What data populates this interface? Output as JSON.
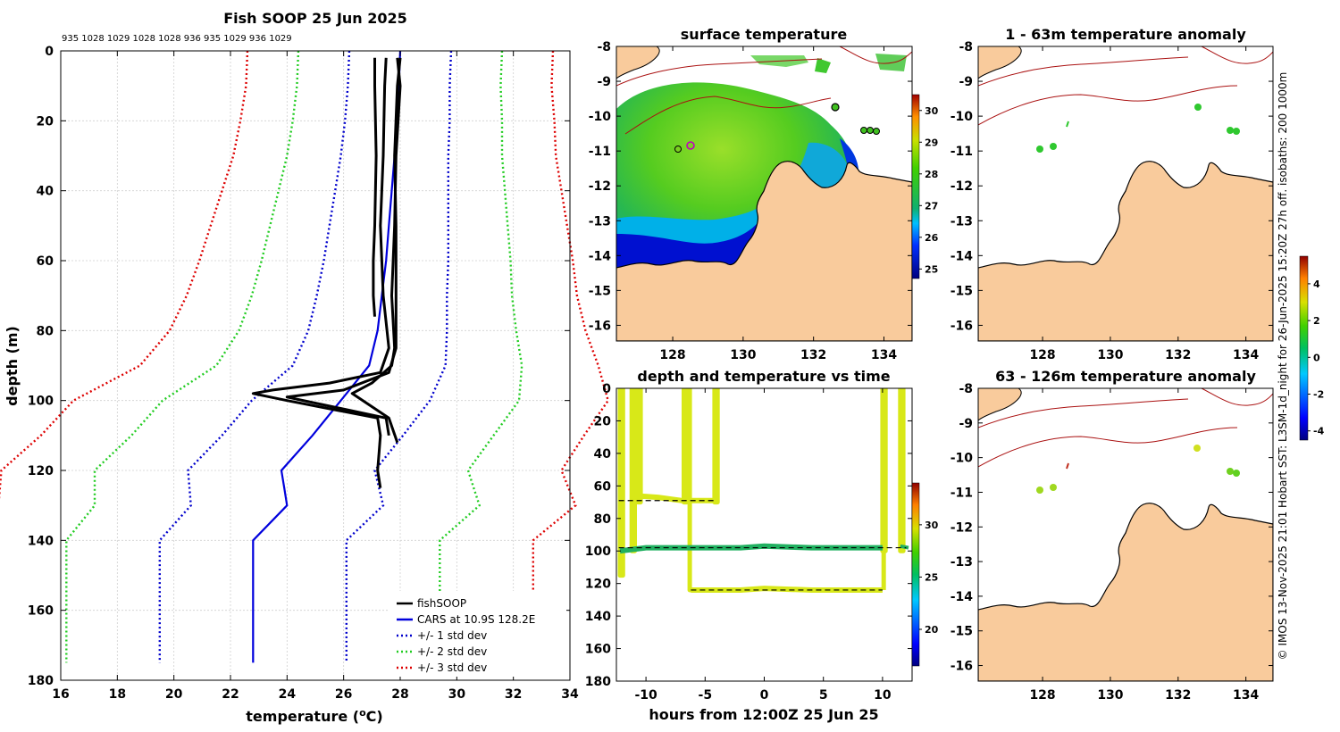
{
  "chart_data": [
    {
      "type": "line",
      "title": "Fish SOOP 25 Jun 2025",
      "xlabel": "temperature (",
      "xlabel_sup": "o",
      "xlabel_tail": "C)",
      "ylabel": "depth (m)",
      "xlim": [
        16,
        34
      ],
      "ylim": [
        180,
        0
      ],
      "xticks": [
        16,
        18,
        20,
        22,
        24,
        26,
        28,
        30,
        32,
        34
      ],
      "yticks": [
        0,
        20,
        40,
        60,
        80,
        100,
        120,
        140,
        160,
        180
      ],
      "top_labels": "935 1028 1029 1028 1028 936 935 1029 936 1029",
      "legend": [
        "fishSOOP",
        "CARS at 10.9S 128.2E",
        "+/- 1 std dev",
        "+/- 2 std dev",
        "+/- 3 std dev"
      ],
      "cars_depth": [
        0,
        10,
        20,
        30,
        40,
        50,
        60,
        70,
        80,
        90,
        100,
        110,
        120,
        125,
        130,
        140,
        175
      ],
      "cars_mean": [
        28.0,
        27.95,
        27.9,
        27.8,
        27.7,
        27.6,
        27.5,
        27.35,
        27.2,
        26.9,
        25.9,
        24.9,
        23.8,
        23.9,
        24.0,
        22.8,
        22.8
      ],
      "std_dev": [
        1.8,
        1.8,
        1.85,
        1.9,
        2.0,
        2.1,
        2.2,
        2.3,
        2.45,
        2.7,
        3.15,
        3.2,
        3.3,
        3.35,
        3.4,
        3.3,
        3.3
      ],
      "fishsoop_casts": [
        {
          "depth": [
            2,
            10,
            30,
            50,
            60,
            70,
            76
          ],
          "temp": [
            27.1,
            27.1,
            27.15,
            27.1,
            27.05,
            27.05,
            27.1
          ]
        },
        {
          "depth": [
            2,
            10,
            30,
            50,
            70,
            85,
            92,
            95,
            97,
            98,
            100,
            105,
            110,
            115,
            120,
            125
          ],
          "temp": [
            27.5,
            27.45,
            27.4,
            27.3,
            27.4,
            27.6,
            27.3,
            25.5,
            23.5,
            22.8,
            24.0,
            27.2,
            27.3,
            27.25,
            27.2,
            27.3
          ]
        },
        {
          "depth": [
            2,
            10,
            30,
            50,
            70,
            85,
            92,
            97,
            99,
            105,
            110
          ],
          "temp": [
            28.0,
            27.9,
            27.8,
            27.85,
            27.85,
            27.85,
            27.6,
            26.0,
            24.0,
            27.5,
            27.6
          ]
        },
        {
          "depth": [
            2,
            10,
            30,
            50,
            70,
            85,
            90,
            95,
            98,
            105,
            112
          ],
          "temp": [
            27.9,
            28.0,
            27.85,
            27.8,
            27.7,
            27.8,
            27.7,
            27.0,
            26.3,
            27.6,
            27.9
          ]
        }
      ]
    },
    {
      "type": "heatmap",
      "title": "surface temperature",
      "xticks": [
        128,
        130,
        132,
        134
      ],
      "yticks": [
        -8,
        -9,
        -10,
        -11,
        -12,
        -13,
        -14,
        -15,
        -16
      ],
      "colorbar_ticks": [
        25,
        26,
        27,
        28,
        29,
        30
      ],
      "clim": [
        24.7,
        30.5
      ]
    },
    {
      "type": "heatmap",
      "title": "1 - 63m temperature anomaly",
      "xticks": [
        128,
        130,
        132,
        134
      ],
      "yticks": [
        -8,
        -9,
        -10,
        -11,
        -12,
        -13,
        -14,
        -15,
        -16
      ]
    },
    {
      "type": "scatter",
      "title": "depth and temperature vs time",
      "xlabel": "hours from 12:00Z 25 Jun 25",
      "xlim": [
        -12.5,
        12.5
      ],
      "ylim": [
        180,
        0
      ],
      "xticks": [
        -10,
        -5,
        0,
        5,
        10
      ],
      "yticks": [
        0,
        20,
        40,
        60,
        80,
        100,
        120,
        140,
        160,
        180
      ],
      "colorbar_ticks": [
        20,
        25,
        30
      ],
      "clim": [
        16.5,
        34
      ],
      "dashed_depths": [
        [
          -12.3,
          -4,
          69
        ],
        [
          -12.3,
          12,
          98
        ],
        [
          -6.2,
          10,
          124
        ]
      ]
    },
    {
      "type": "heatmap",
      "title": "63 - 126m temperature anomaly",
      "xticks": [
        128,
        130,
        132,
        134
      ],
      "yticks": [
        -8,
        -9,
        -10,
        -11,
        -12,
        -13,
        -14,
        -15,
        -16
      ]
    }
  ],
  "anomaly_colorbar": {
    "ticks": [
      4,
      2,
      0,
      -2,
      -4
    ],
    "clim": [
      -4.5,
      5.5
    ]
  },
  "side_note": "© IMOS 13-Nov-2025 21:01 Hobart SST: L3SM-1d_night for 26-Jun-2025 15:20Z 27h off. isobaths: 200  1000m",
  "colors": {
    "fishsoop": "#000000",
    "cars": "#0000dd",
    "std1": "#0000cc",
    "std2": "#22cc22",
    "std3": "#dd0000",
    "land": "#f9cb9c",
    "isobath": "#aa1111"
  }
}
